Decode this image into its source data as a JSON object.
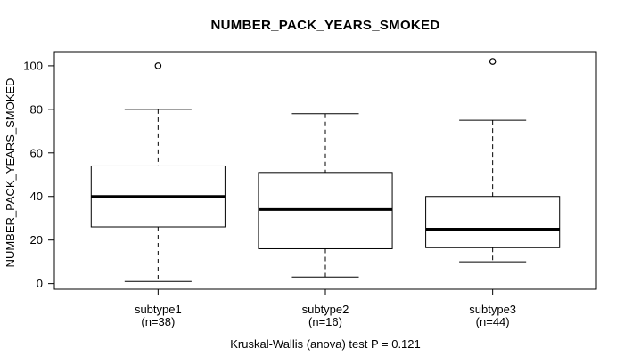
{
  "page": {
    "background": "#ffffff",
    "foreground": "#000000"
  },
  "chart_data": {
    "type": "boxplot",
    "title": "NUMBER_PACK_YEARS_SMOKED",
    "ylabel": "NUMBER_PACK_YEARS_SMOKED",
    "xlabel": "",
    "caption": "Kruskal-Wallis (anova) test P = 0.121",
    "p_value": 0.121,
    "yticks": [
      0,
      20,
      40,
      60,
      80,
      100
    ],
    "ylim": [
      -2.6,
      106.5
    ],
    "xlim": [
      0.38,
      3.62
    ],
    "grid": false,
    "legend": false,
    "box_width": 0.8,
    "cap_width": 0.4,
    "groups": [
      {
        "label": "subtype1",
        "n_label": "(n=38)",
        "n": 38,
        "position": 1,
        "whisker_low": 1,
        "q1": 26,
        "median": 40,
        "q3": 54,
        "whisker_high": 80,
        "outliers": [
          100
        ]
      },
      {
        "label": "subtype2",
        "n_label": "(n=16)",
        "n": 16,
        "position": 2,
        "whisker_low": 3,
        "q1": 16,
        "median": 34,
        "q3": 51,
        "whisker_high": 78,
        "outliers": []
      },
      {
        "label": "subtype3",
        "n_label": "(n=44)",
        "n": 44,
        "position": 3,
        "whisker_low": 10,
        "q1": 16.5,
        "median": 25,
        "q3": 40,
        "whisker_high": 75,
        "outliers": [
          102
        ]
      }
    ]
  }
}
